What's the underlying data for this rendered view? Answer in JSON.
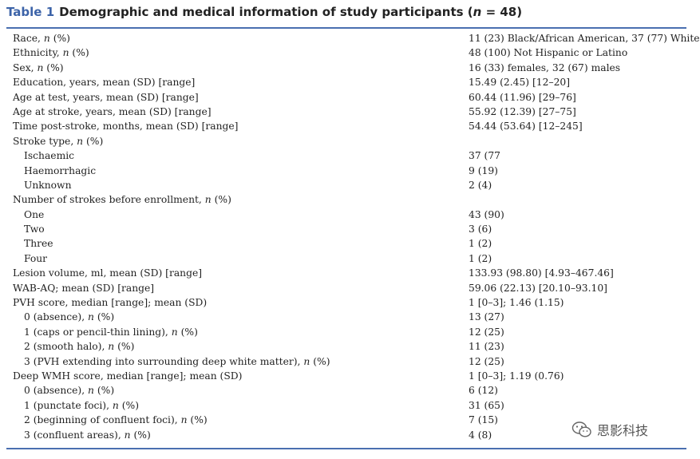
{
  "caption": {
    "label": "Table 1",
    "title_prefix": "Demographic and medical information of study participants (",
    "n_symbol": "n",
    "title_suffix": " = 48)"
  },
  "rows": [
    {
      "left": "Race, ",
      "italic": "n",
      "after": " (%)",
      "right": "11 (23) Black/African American, 37 (77) White",
      "indent": false
    },
    {
      "left": "Ethnicity, ",
      "italic": "n",
      "after": " (%)",
      "right": "48 (100) Not Hispanic or Latino",
      "indent": false
    },
    {
      "left": "Sex, ",
      "italic": "n",
      "after": " (%)",
      "right": "16 (33) females, 32 (67) males",
      "indent": false
    },
    {
      "left": "Education, years, mean (SD) [range]",
      "italic": "",
      "after": "",
      "right": "15.49 (2.45) [12–20]",
      "indent": false
    },
    {
      "left": "Age at test, years, mean (SD) [range]",
      "italic": "",
      "after": "",
      "right": "60.44 (11.96) [29–76]",
      "indent": false
    },
    {
      "left": "Age at stroke, years, mean (SD) [range]",
      "italic": "",
      "after": "",
      "right": "55.92 (12.39) [27–75]",
      "indent": false
    },
    {
      "left": "Time post-stroke, months, mean (SD) [range]",
      "italic": "",
      "after": "",
      "right": "54.44 (53.64) [12–245]",
      "indent": false
    },
    {
      "left": "Stroke type, ",
      "italic": "n",
      "after": " (%)",
      "right": "",
      "indent": false
    },
    {
      "left": "Ischaemic",
      "italic": "",
      "after": "",
      "right": "37 (77",
      "indent": true
    },
    {
      "left": "Haemorrhagic",
      "italic": "",
      "after": "",
      "right": "9 (19)",
      "indent": true
    },
    {
      "left": "Unknown",
      "italic": "",
      "after": "",
      "right": "2 (4)",
      "indent": true
    },
    {
      "left": "Number of strokes before enrollment, ",
      "italic": "n",
      "after": " (%)",
      "right": "",
      "indent": false
    },
    {
      "left": "One",
      "italic": "",
      "after": "",
      "right": "43 (90)",
      "indent": true
    },
    {
      "left": "Two",
      "italic": "",
      "after": "",
      "right": "3 (6)",
      "indent": true
    },
    {
      "left": "Three",
      "italic": "",
      "after": "",
      "right": "1 (2)",
      "indent": true
    },
    {
      "left": "Four",
      "italic": "",
      "after": "",
      "right": "1 (2)",
      "indent": true
    },
    {
      "left": "Lesion volume, ml, mean (SD) [range]",
      "italic": "",
      "after": "",
      "right": "133.93 (98.80) [4.93–467.46]",
      "indent": false
    },
    {
      "left": "WAB-AQ; mean (SD) [range]",
      "italic": "",
      "after": "",
      "right": "59.06 (22.13) [20.10–93.10]",
      "indent": false
    },
    {
      "left": "PVH score, median [range]; mean (SD)",
      "italic": "",
      "after": "",
      "right": "1 [0–3]; 1.46 (1.15)",
      "indent": false
    },
    {
      "left": "0 (absence), ",
      "italic": "n",
      "after": " (%)",
      "right": "13 (27)",
      "indent": true
    },
    {
      "left": "1 (caps or pencil-thin lining), ",
      "italic": "n",
      "after": " (%)",
      "right": "12 (25)",
      "indent": true
    },
    {
      "left": "2 (smooth halo), ",
      "italic": "n",
      "after": " (%)",
      "right": "11 (23)",
      "indent": true
    },
    {
      "left": "3 (PVH extending into surrounding deep white matter), ",
      "italic": "n",
      "after": " (%)",
      "right": "12 (25)",
      "indent": true
    },
    {
      "left": "Deep WMH score, median [range]; mean (SD)",
      "italic": "",
      "after": "",
      "right": "1 [0–3]; 1.19 (0.76)",
      "indent": false
    },
    {
      "left": "0 (absence), ",
      "italic": "n",
      "after": " (%)",
      "right": "6 (12)",
      "indent": true
    },
    {
      "left": "1 (punctate foci), ",
      "italic": "n",
      "after": " (%)",
      "right": "31 (65)",
      "indent": true
    },
    {
      "left": "2 (beginning of confluent foci), ",
      "italic": "n",
      "after": " (%)",
      "right": "7 (15)",
      "indent": true
    },
    {
      "left": "3 (confluent areas), ",
      "italic": "n",
      "after": " (%)",
      "right": "4 (8)",
      "indent": true
    }
  ],
  "watermark": {
    "text": "思影科技",
    "icon": "wechat-icon"
  }
}
